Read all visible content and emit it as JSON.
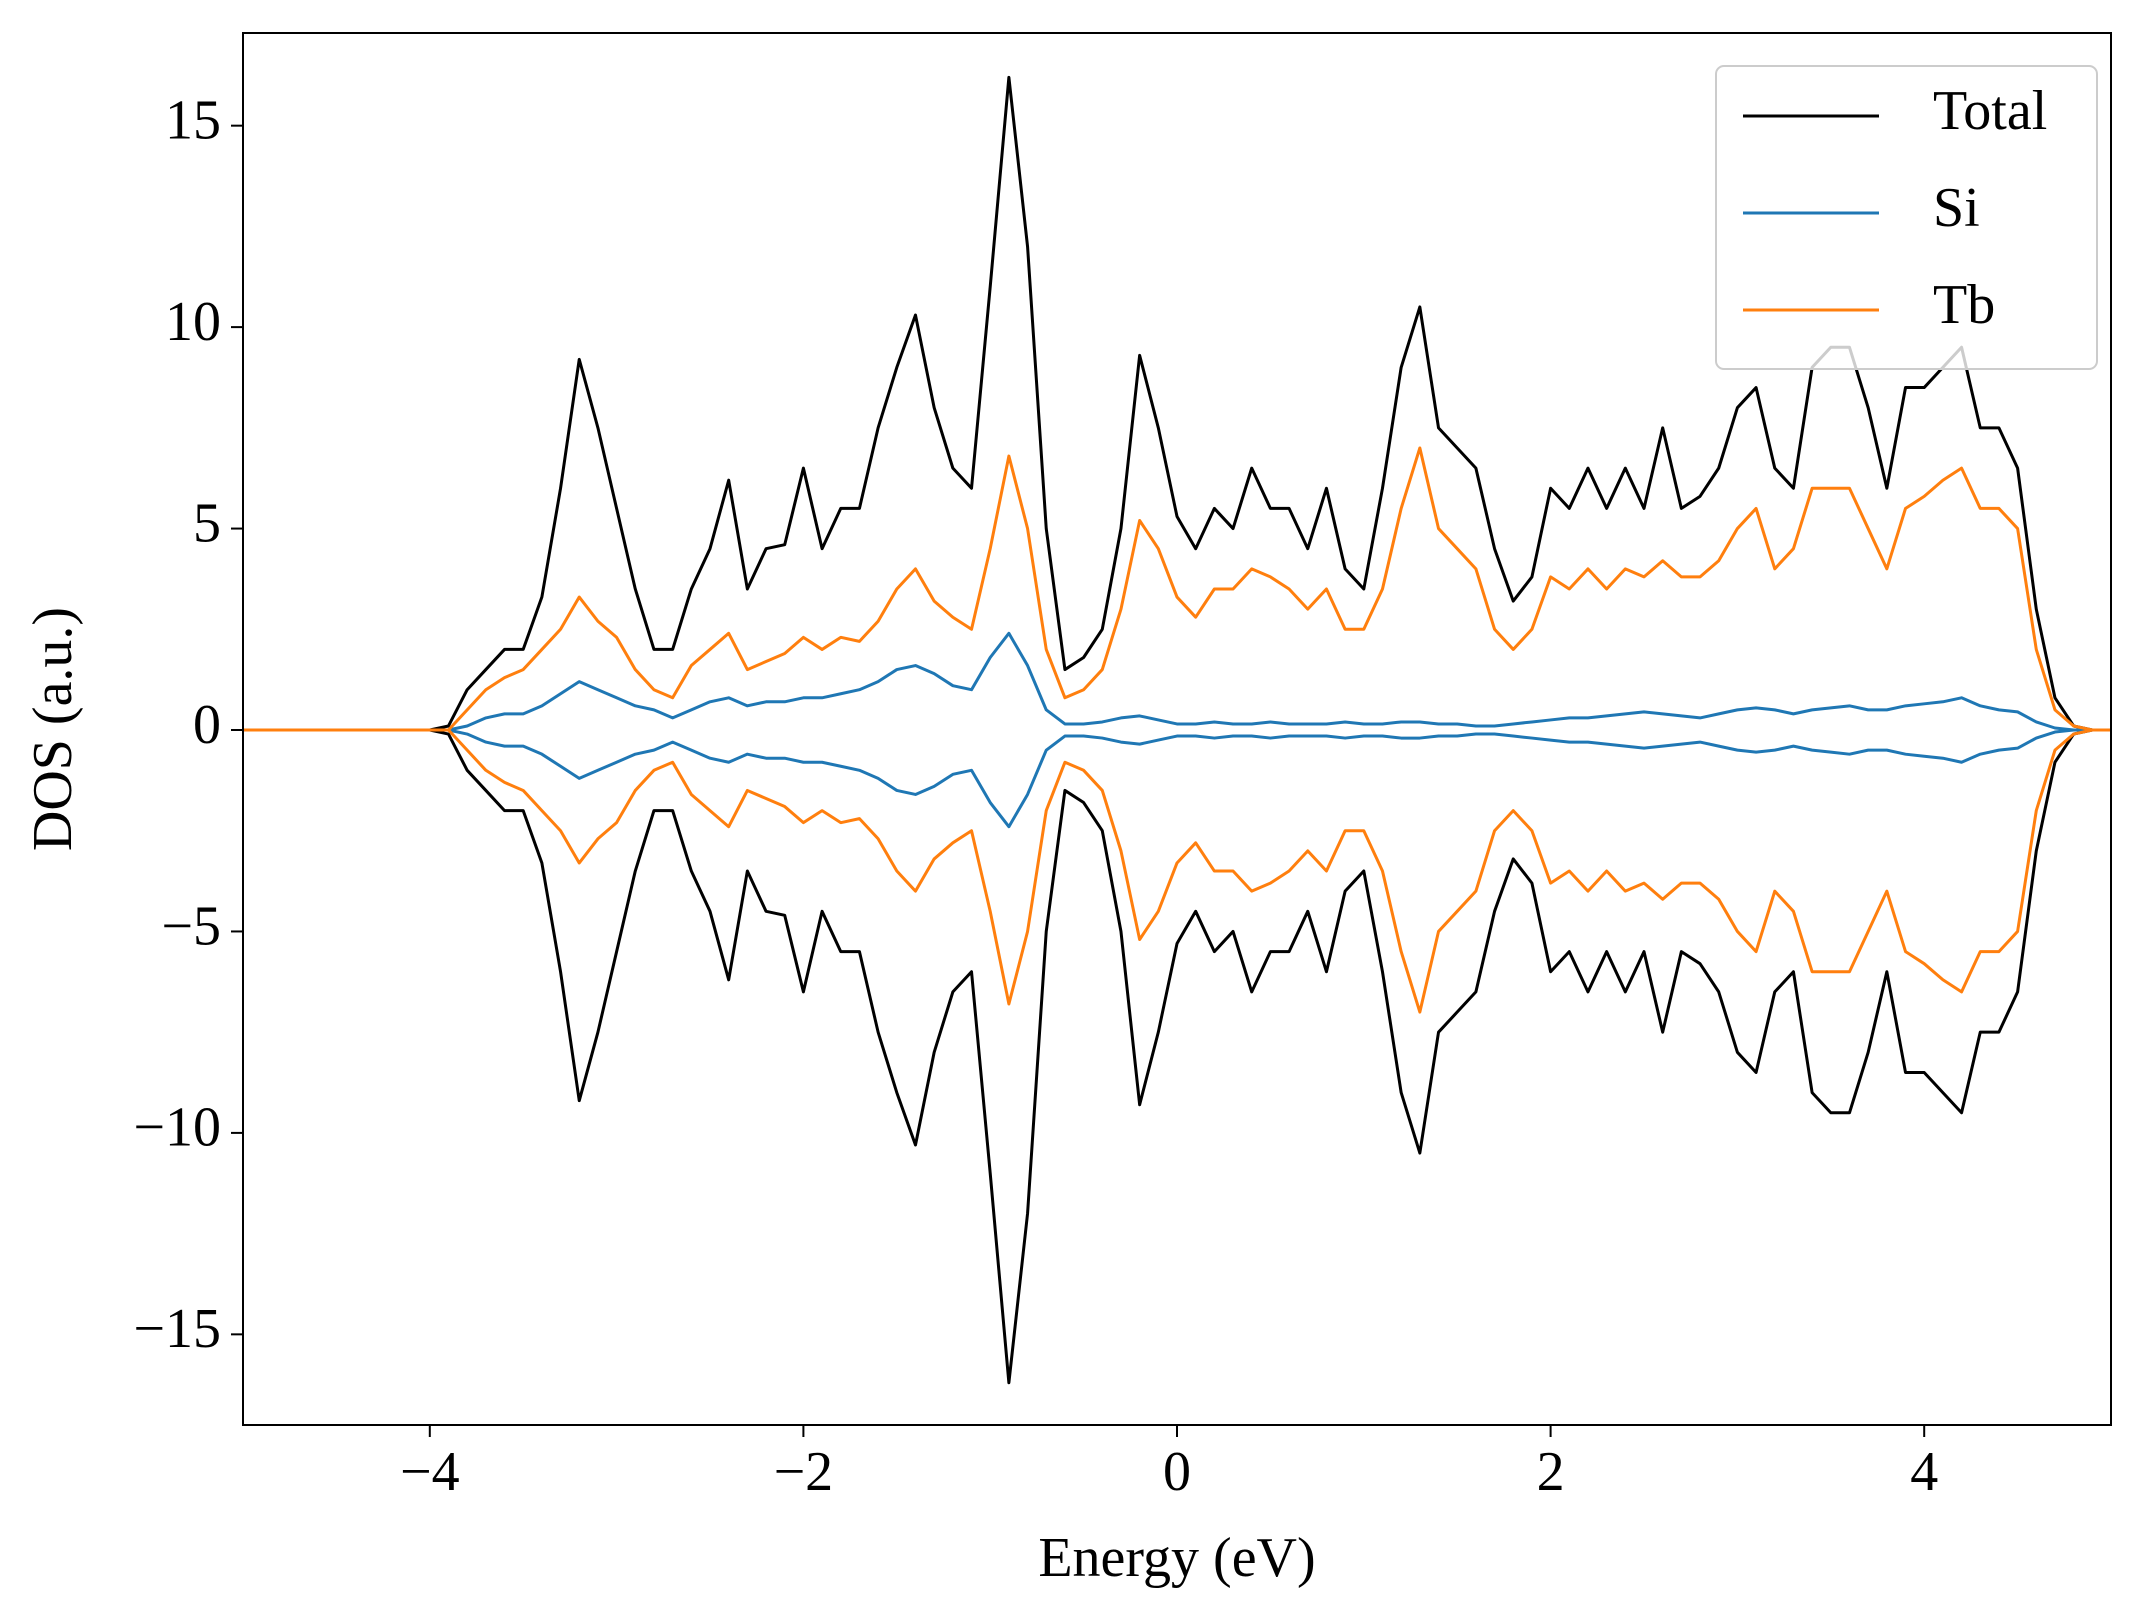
{
  "chart_data": {
    "type": "line",
    "xlabel": "Energy (eV)",
    "ylabel": "DOS (a.u.)",
    "xlim": [
      -5,
      5
    ],
    "ylim": [
      -17.25,
      17.3
    ],
    "xticks": [
      {
        "value": -4,
        "label": "−4"
      },
      {
        "value": -2,
        "label": "−2"
      },
      0,
      2,
      4
    ],
    "yticks": [
      {
        "value": -15,
        "label": "−15"
      },
      {
        "value": -10,
        "label": "−10"
      },
      {
        "value": -5,
        "label": "−5"
      },
      0,
      5,
      10,
      15
    ],
    "legend": "upper right",
    "grid": false,
    "x": [
      -5.0,
      -4.9,
      -4.8,
      -4.7,
      -4.6,
      -4.5,
      -4.4,
      -4.3,
      -4.2,
      -4.1,
      -4.0,
      -3.9,
      -3.8,
      -3.7,
      -3.6,
      -3.5,
      -3.4,
      -3.3,
      -3.2,
      -3.1,
      -3.0,
      -2.9,
      -2.8,
      -2.7,
      -2.6,
      -2.5,
      -2.4,
      -2.3,
      -2.2,
      -2.1,
      -2.0,
      -1.9,
      -1.8,
      -1.7,
      -1.6,
      -1.5,
      -1.4,
      -1.3,
      -1.2,
      -1.1,
      -1.0,
      -0.9,
      -0.8,
      -0.7,
      -0.6,
      -0.5,
      -0.4,
      -0.3,
      -0.2,
      -0.1,
      0.0,
      0.1,
      0.2,
      0.3,
      0.4,
      0.5,
      0.6,
      0.7,
      0.8,
      0.9,
      1.0,
      1.1,
      1.2,
      1.3,
      1.4,
      1.5,
      1.6,
      1.7,
      1.8,
      1.9,
      2.0,
      2.1,
      2.2,
      2.3,
      2.4,
      2.5,
      2.6,
      2.7,
      2.8,
      2.9,
      3.0,
      3.1,
      3.2,
      3.3,
      3.4,
      3.5,
      3.6,
      3.7,
      3.8,
      3.9,
      4.0,
      4.1,
      4.2,
      4.3,
      4.4,
      4.5,
      4.6,
      4.7,
      4.8,
      4.9,
      5.0
    ],
    "series": [
      {
        "name": "Total",
        "color": "#000000",
        "values": [
          0,
          0,
          0,
          0,
          0,
          0,
          0,
          0,
          0,
          0,
          0,
          0.1,
          1.0,
          1.5,
          2.0,
          2.0,
          3.3,
          6,
          9.2,
          7.5,
          5.5,
          3.5,
          2.0,
          2.0,
          3.5,
          4.5,
          6.2,
          3.5,
          4.5,
          4.6,
          6.5,
          4.5,
          5.5,
          5.5,
          7.5,
          9.0,
          10.3,
          8.0,
          6.5,
          6.0,
          11.0,
          16.2,
          12,
          5,
          1.5,
          1.8,
          2.5,
          5,
          9.3,
          7.5,
          5.3,
          4.5,
          5.5,
          5,
          6.5,
          5.5,
          5.5,
          4.5,
          6,
          4.0,
          3.5,
          6,
          9,
          10.5,
          7.5,
          7,
          6.5,
          4.5,
          3.2,
          3.8,
          6,
          5.5,
          6.5,
          5.5,
          6.5,
          5.5,
          7.5,
          5.5,
          5.8,
          6.5,
          8.0,
          8.5,
          6.5,
          6.0,
          9.0,
          9.5,
          9.5,
          8.0,
          6.0,
          8.5,
          8.5,
          9.0,
          9.5,
          7.5,
          7.5,
          6.5,
          3.0,
          0.8,
          0.1,
          0,
          0
        ],
        "values_down": [
          0,
          0,
          0,
          0,
          0,
          0,
          0,
          0,
          0,
          0,
          0,
          -0.1,
          -1.0,
          -1.5,
          -2.0,
          -2.0,
          -3.3,
          -6,
          -9.2,
          -7.5,
          -5.5,
          -3.5,
          -2.0,
          -2.0,
          -3.5,
          -4.5,
          -6.2,
          -3.5,
          -4.5,
          -4.6,
          -6.5,
          -4.5,
          -5.5,
          -5.5,
          -7.5,
          -9.0,
          -10.3,
          -8.0,
          -6.5,
          -6.0,
          -11.0,
          -16.2,
          -12,
          -5,
          -1.5,
          -1.8,
          -2.5,
          -5,
          -9.3,
          -7.5,
          -5.3,
          -4.5,
          -5.5,
          -5,
          -6.5,
          -5.5,
          -5.5,
          -4.5,
          -6,
          -4.0,
          -3.5,
          -6,
          -9,
          -10.5,
          -7.5,
          -7,
          -6.5,
          -4.5,
          -3.2,
          -3.8,
          -6,
          -5.5,
          -6.5,
          -5.5,
          -6.5,
          -5.5,
          -7.5,
          -5.5,
          -5.8,
          -6.5,
          -8.0,
          -8.5,
          -6.5,
          -6.0,
          -9.0,
          -9.5,
          -9.5,
          -8.0,
          -6.0,
          -8.5,
          -8.5,
          -9.0,
          -9.5,
          -7.5,
          -7.5,
          -6.5,
          -3.0,
          -0.8,
          -0.1,
          0,
          0
        ]
      },
      {
        "name": "Si",
        "color": "#1f77b4",
        "values": [
          0,
          0,
          0,
          0,
          0,
          0,
          0,
          0,
          0,
          0,
          0,
          0,
          0.1,
          0.3,
          0.4,
          0.4,
          0.6,
          0.9,
          1.2,
          1.0,
          0.8,
          0.6,
          0.5,
          0.3,
          0.5,
          0.7,
          0.8,
          0.6,
          0.7,
          0.7,
          0.8,
          0.8,
          0.9,
          1.0,
          1.2,
          1.5,
          1.6,
          1.4,
          1.1,
          1.0,
          1.8,
          2.4,
          1.6,
          0.5,
          0.15,
          0.15,
          0.2,
          0.3,
          0.35,
          0.25,
          0.15,
          0.15,
          0.2,
          0.15,
          0.15,
          0.2,
          0.15,
          0.15,
          0.15,
          0.2,
          0.15,
          0.15,
          0.2,
          0.2,
          0.15,
          0.15,
          0.1,
          0.1,
          0.15,
          0.2,
          0.25,
          0.3,
          0.3,
          0.35,
          0.4,
          0.45,
          0.4,
          0.35,
          0.3,
          0.4,
          0.5,
          0.55,
          0.5,
          0.4,
          0.5,
          0.55,
          0.6,
          0.5,
          0.5,
          0.6,
          0.65,
          0.7,
          0.8,
          0.6,
          0.5,
          0.45,
          0.2,
          0.05,
          0,
          0,
          0
        ],
        "values_down": [
          0,
          0,
          0,
          0,
          0,
          0,
          0,
          0,
          0,
          0,
          0,
          0,
          -0.1,
          -0.3,
          -0.4,
          -0.4,
          -0.6,
          -0.9,
          -1.2,
          -1.0,
          -0.8,
          -0.6,
          -0.5,
          -0.3,
          -0.5,
          -0.7,
          -0.8,
          -0.6,
          -0.7,
          -0.7,
          -0.8,
          -0.8,
          -0.9,
          -1.0,
          -1.2,
          -1.5,
          -1.6,
          -1.4,
          -1.1,
          -1.0,
          -1.8,
          -2.4,
          -1.6,
          -0.5,
          -0.15,
          -0.15,
          -0.2,
          -0.3,
          -0.35,
          -0.25,
          -0.15,
          -0.15,
          -0.2,
          -0.15,
          -0.15,
          -0.2,
          -0.15,
          -0.15,
          -0.15,
          -0.2,
          -0.15,
          -0.15,
          -0.2,
          -0.2,
          -0.15,
          -0.15,
          -0.1,
          -0.1,
          -0.15,
          -0.2,
          -0.25,
          -0.3,
          -0.3,
          -0.35,
          -0.4,
          -0.45,
          -0.4,
          -0.35,
          -0.3,
          -0.4,
          -0.5,
          -0.55,
          -0.5,
          -0.4,
          -0.5,
          -0.55,
          -0.6,
          -0.5,
          -0.5,
          -0.6,
          -0.65,
          -0.7,
          -0.8,
          -0.6,
          -0.5,
          -0.45,
          -0.2,
          -0.05,
          0,
          0,
          0
        ]
      },
      {
        "name": "Tb",
        "color": "#ff7f0e",
        "values": [
          0,
          0,
          0,
          0,
          0,
          0,
          0,
          0,
          0,
          0,
          0,
          0,
          0.5,
          1.0,
          1.3,
          1.5,
          2.0,
          2.5,
          3.3,
          2.7,
          2.3,
          1.5,
          1.0,
          0.8,
          1.6,
          2.0,
          2.4,
          1.5,
          1.7,
          1.9,
          2.3,
          2.0,
          2.3,
          2.2,
          2.7,
          3.5,
          4.0,
          3.2,
          2.8,
          2.5,
          4.5,
          6.8,
          5.0,
          2.0,
          0.8,
          1.0,
          1.5,
          3.0,
          5.2,
          4.5,
          3.3,
          2.8,
          3.5,
          3.5,
          4.0,
          3.8,
          3.5,
          3.0,
          3.5,
          2.5,
          2.5,
          3.5,
          5.5,
          7.0,
          5.0,
          4.5,
          4.0,
          2.5,
          2.0,
          2.5,
          3.8,
          3.5,
          4.0,
          3.5,
          4.0,
          3.8,
          4.2,
          3.8,
          3.8,
          4.2,
          5.0,
          5.5,
          4.0,
          4.5,
          6.0,
          6.0,
          6.0,
          5.0,
          4.0,
          5.5,
          5.8,
          6.2,
          6.5,
          5.5,
          5.5,
          5.0,
          2.0,
          0.5,
          0.1,
          0,
          0
        ],
        "values_down": [
          0,
          0,
          0,
          0,
          0,
          0,
          0,
          0,
          0,
          0,
          0,
          0,
          -0.5,
          -1.0,
          -1.3,
          -1.5,
          -2.0,
          -2.5,
          -3.3,
          -2.7,
          -2.3,
          -1.5,
          -1.0,
          -0.8,
          -1.6,
          -2.0,
          -2.4,
          -1.5,
          -1.7,
          -1.9,
          -2.3,
          -2.0,
          -2.3,
          -2.2,
          -2.7,
          -3.5,
          -4.0,
          -3.2,
          -2.8,
          -2.5,
          -4.5,
          -6.8,
          -5.0,
          -2.0,
          -0.8,
          -1.0,
          -1.5,
          -3.0,
          -5.2,
          -4.5,
          -3.3,
          -2.8,
          -3.5,
          -3.5,
          -4.0,
          -3.8,
          -3.5,
          -3.0,
          -3.5,
          -2.5,
          -2.5,
          -3.5,
          -5.5,
          -7.0,
          -5.0,
          -4.5,
          -4.0,
          -2.5,
          -2.0,
          -2.5,
          -3.8,
          -3.5,
          -4.0,
          -3.5,
          -4.0,
          -3.8,
          -4.2,
          -3.8,
          -3.8,
          -4.2,
          -5.0,
          -5.5,
          -4.0,
          -4.5,
          -6.0,
          -6.0,
          -6.0,
          -5.0,
          -4.0,
          -5.5,
          -5.8,
          -6.2,
          -6.5,
          -5.5,
          -5.5,
          -5.0,
          -2.0,
          -0.5,
          -0.1,
          0,
          0
        ]
      }
    ]
  }
}
